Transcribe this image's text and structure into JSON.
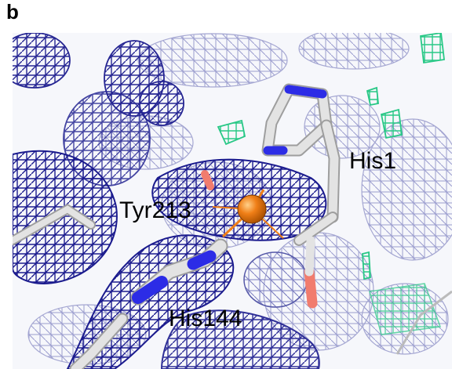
{
  "panel": {
    "letter": "b"
  },
  "residues": {
    "his1": "His1",
    "tyr213": "Tyr213",
    "his144": "His144"
  },
  "colors": {
    "density_mesh_dark": "#1b1b8e",
    "density_mesh_light": "#6f73b9",
    "difference_mesh": "#28c886",
    "metal_ion": "#f07f17",
    "bond_stick": "#e3e3e3",
    "nitrogen": "#2c2ce6",
    "oxygen": "#f17c6e"
  },
  "atoms": {
    "metal_ion_name": "metal-ion"
  }
}
